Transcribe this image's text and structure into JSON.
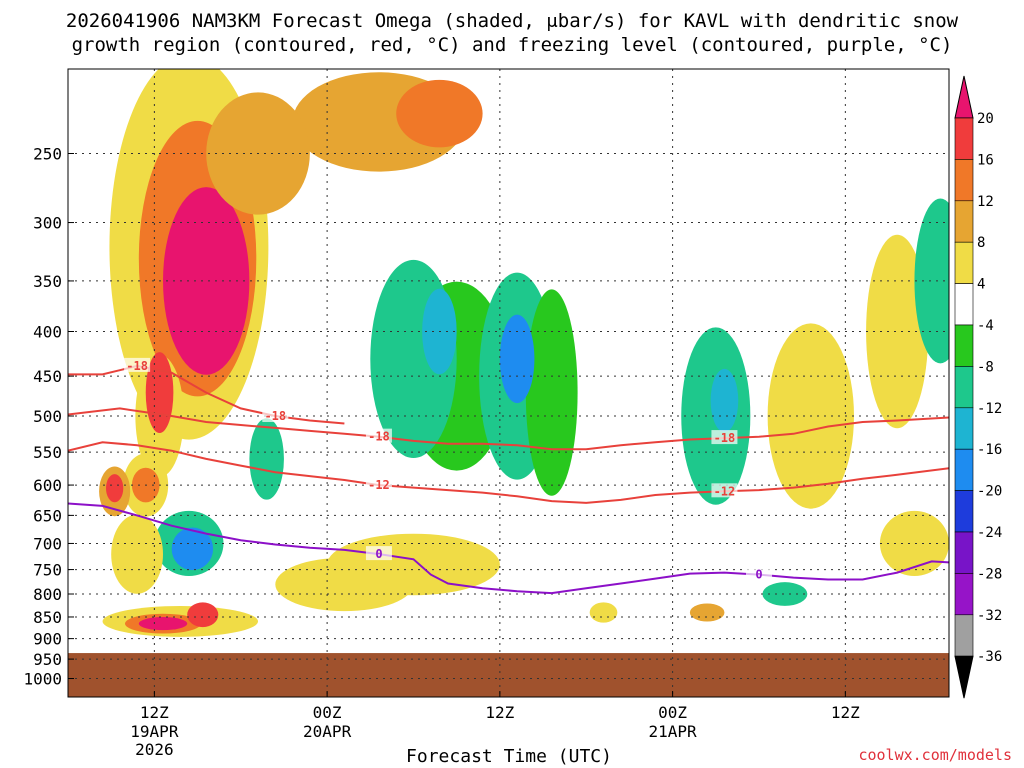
{
  "chart_data": {
    "type": "heatmap",
    "title_lines": [
      "2026041906 NAM3KM Forecast Omega (shaded, μbar/s) for KAVL with dendritic snow",
      "growth region (contoured, red, °C) and freezing level (contoured, purple, °C)"
    ],
    "xlabel": "Forecast Time (UTC)",
    "ylabel": "",
    "credit": "coolwx.com/models",
    "x_range_hours": [
      6,
      57
    ],
    "y_range_hpa": [
      200,
      1050
    ],
    "y_scale": "log-pressure (inverted)",
    "y_ticks": [
      250,
      300,
      350,
      400,
      450,
      500,
      550,
      600,
      650,
      700,
      750,
      800,
      850,
      900,
      950,
      1000
    ],
    "x_ticks": [
      {
        "hour": 11,
        "label": "12Z",
        "sub1": "19APR",
        "sub2": "2026"
      },
      {
        "hour": 21,
        "label": "00Z",
        "sub1": "20APR",
        "sub2": ""
      },
      {
        "hour": 31,
        "label": "12Z",
        "sub1": "",
        "sub2": ""
      },
      {
        "hour": 41,
        "label": "00Z",
        "sub1": "21APR",
        "sub2": ""
      },
      {
        "hour": 51,
        "label": "12Z",
        "sub1": "",
        "sub2": ""
      }
    ],
    "grid": true,
    "ground_pressure_hpa": 935,
    "colorbar": {
      "labels": [
        "20",
        "16",
        "12",
        "8",
        "4",
        "-4",
        "-8",
        "-12",
        "-16",
        "-20",
        "-24",
        "-28",
        "-32",
        "-36"
      ],
      "colors": [
        "#e8146e",
        "#f03c3c",
        "#f07828",
        "#e6a532",
        "#f0dc46",
        "#ffffff",
        "#28c81e",
        "#1ec88c",
        "#1eb4d2",
        "#1e8cf0",
        "#1e3cdc",
        "#7814c8",
        "#9614c8",
        "#a0a0a0",
        "#000000"
      ]
    },
    "series": [
      {
        "name": "dendritic -12C",
        "label": "-12",
        "points": [
          [
            6,
            548
          ],
          [
            8,
            536
          ],
          [
            10,
            540
          ],
          [
            12,
            548
          ],
          [
            14,
            560
          ],
          [
            16,
            570
          ],
          [
            18,
            580
          ],
          [
            20,
            586
          ],
          [
            22,
            592
          ],
          [
            24,
            600
          ],
          [
            26,
            604
          ],
          [
            28,
            608
          ],
          [
            30,
            612
          ],
          [
            32,
            618
          ],
          [
            34,
            626
          ],
          [
            36,
            629
          ],
          [
            38,
            624
          ],
          [
            40,
            616
          ],
          [
            42,
            612
          ],
          [
            44,
            610
          ],
          [
            46,
            608
          ],
          [
            48,
            604
          ],
          [
            50,
            598
          ],
          [
            52,
            590
          ],
          [
            54,
            584
          ],
          [
            57,
            574
          ]
        ]
      },
      {
        "name": "dendritic -18C",
        "label": "-18",
        "points": [
          [
            6,
            498
          ],
          [
            9,
            490
          ],
          [
            12,
            500
          ],
          [
            14,
            508
          ],
          [
            16,
            512
          ],
          [
            18,
            516
          ],
          [
            20,
            520
          ],
          [
            22,
            524
          ],
          [
            24,
            528
          ],
          [
            26,
            534
          ],
          [
            28,
            538
          ],
          [
            30,
            538
          ],
          [
            32,
            540
          ],
          [
            34,
            546
          ],
          [
            36,
            546
          ],
          [
            38,
            540
          ],
          [
            40,
            536
          ],
          [
            42,
            532
          ],
          [
            44,
            530
          ],
          [
            46,
            528
          ],
          [
            48,
            524
          ],
          [
            50,
            514
          ],
          [
            52,
            508
          ],
          [
            54,
            506
          ],
          [
            57,
            502
          ]
        ]
      },
      {
        "name": "dendritic -18C upper",
        "label": "-18",
        "points": [
          [
            6,
            448
          ],
          [
            8,
            448
          ],
          [
            9,
            443
          ],
          [
            10,
            438
          ],
          [
            12,
            446
          ],
          [
            14,
            470
          ],
          [
            16,
            490
          ],
          [
            18,
            500
          ],
          [
            20,
            506
          ],
          [
            22,
            510
          ]
        ]
      },
      {
        "name": "freezing level 0C",
        "label": "0",
        "points": [
          [
            6,
            630
          ],
          [
            8,
            634
          ],
          [
            10,
            650
          ],
          [
            12,
            668
          ],
          [
            14,
            682
          ],
          [
            16,
            694
          ],
          [
            18,
            702
          ],
          [
            20,
            708
          ],
          [
            22,
            712
          ],
          [
            24,
            720
          ],
          [
            26,
            730
          ],
          [
            27,
            760
          ],
          [
            28,
            778
          ],
          [
            30,
            788
          ],
          [
            32,
            794
          ],
          [
            34,
            798
          ],
          [
            36,
            788
          ],
          [
            38,
            778
          ],
          [
            40,
            768
          ],
          [
            42,
            758
          ],
          [
            44,
            756
          ],
          [
            46,
            760
          ],
          [
            48,
            766
          ],
          [
            50,
            770
          ],
          [
            52,
            770
          ],
          [
            54,
            756
          ],
          [
            56,
            734
          ],
          [
            57,
            736
          ]
        ]
      }
    ],
    "omega_cells": [
      {
        "t": 8.7,
        "p": 605,
        "rt": 0.5,
        "rp": 45,
        "v": 18
      },
      {
        "t": 8.7,
        "p": 610,
        "rt": 0.9,
        "rp": 80,
        "v": 10
      },
      {
        "t": 10.5,
        "p": 600,
        "rt": 0.8,
        "rp": 55,
        "v": 14
      },
      {
        "t": 10.5,
        "p": 600,
        "rt": 1.3,
        "rp": 100,
        "v": 6
      },
      {
        "t": 11.3,
        "p": 470,
        "rt": 0.8,
        "rp": 100,
        "v": 16
      },
      {
        "t": 11.3,
        "p": 500,
        "rt": 1.4,
        "rp": 160,
        "v": 6
      },
      {
        "t": 14.0,
        "p": 350,
        "rt": 2.5,
        "rp": 170,
        "v": 22
      },
      {
        "t": 13.5,
        "p": 330,
        "rt": 3.4,
        "rp": 230,
        "v": 14
      },
      {
        "t": 13.0,
        "p": 320,
        "rt": 4.6,
        "rp": 300,
        "v": 6
      },
      {
        "t": 17.0,
        "p": 250,
        "rt": 3.0,
        "rp": 80,
        "v": 8
      },
      {
        "t": 24.0,
        "p": 230,
        "rt": 5.0,
        "rp": 60,
        "v": 8
      },
      {
        "t": 27.5,
        "p": 225,
        "rt": 2.5,
        "rp": 40,
        "v": 12
      },
      {
        "t": 11.5,
        "p": 865,
        "rt": 1.4,
        "rp": 30,
        "v": 22
      },
      {
        "t": 11.5,
        "p": 865,
        "rt": 2.2,
        "rp": 45,
        "v": 12
      },
      {
        "t": 13.8,
        "p": 845,
        "rt": 0.9,
        "rp": 55,
        "v": 16
      },
      {
        "t": 12.5,
        "p": 860,
        "rt": 4.5,
        "rp": 70,
        "v": 5
      },
      {
        "t": 13.2,
        "p": 710,
        "rt": 1.2,
        "rp": 80,
        "v": -18
      },
      {
        "t": 13.0,
        "p": 700,
        "rt": 2.0,
        "rp": 120,
        "v": -8
      },
      {
        "t": 17.5,
        "p": 560,
        "rt": 1.0,
        "rp": 120,
        "v": -8
      },
      {
        "t": 26.0,
        "p": 430,
        "rt": 2.5,
        "rp": 220,
        "v": -8
      },
      {
        "t": 27.5,
        "p": 400,
        "rt": 1.0,
        "rp": 90,
        "v": -14
      },
      {
        "t": 28.5,
        "p": 450,
        "rt": 3.0,
        "rp": 220,
        "v": -6
      },
      {
        "t": 32.0,
        "p": 430,
        "rt": 1.0,
        "rp": 100,
        "v": -16
      },
      {
        "t": 32.0,
        "p": 450,
        "rt": 2.2,
        "rp": 240,
        "v": -8
      },
      {
        "t": 34.0,
        "p": 470,
        "rt": 1.5,
        "rp": 250,
        "v": -6
      },
      {
        "t": 44.0,
        "p": 480,
        "rt": 0.8,
        "rp": 80,
        "v": -14
      },
      {
        "t": 43.5,
        "p": 500,
        "rt": 2.0,
        "rp": 230,
        "v": -8
      },
      {
        "t": 47.5,
        "p": 800,
        "rt": 1.3,
        "rp": 50,
        "v": -8
      },
      {
        "t": 56.5,
        "p": 350,
        "rt": 1.5,
        "rp": 150,
        "v": -8
      },
      {
        "t": 43.0,
        "p": 840,
        "rt": 1.0,
        "rp": 40,
        "v": 8
      },
      {
        "t": 49.0,
        "p": 500,
        "rt": 2.5,
        "rp": 240,
        "v": 5
      },
      {
        "t": 54.0,
        "p": 400,
        "rt": 1.8,
        "rp": 200,
        "v": 5
      },
      {
        "t": 37.0,
        "p": 840,
        "rt": 0.8,
        "rp": 45,
        "v": 6
      },
      {
        "t": 26.0,
        "p": 740,
        "rt": 5.0,
        "rp": 120,
        "v": 5
      },
      {
        "t": 22.0,
        "p": 780,
        "rt": 4.0,
        "rp": 110,
        "v": 5
      },
      {
        "t": 55.0,
        "p": 700,
        "rt": 2.0,
        "rp": 120,
        "v": 5
      },
      {
        "t": 10.0,
        "p": 720,
        "rt": 1.5,
        "rp": 150,
        "v": 5
      }
    ]
  }
}
